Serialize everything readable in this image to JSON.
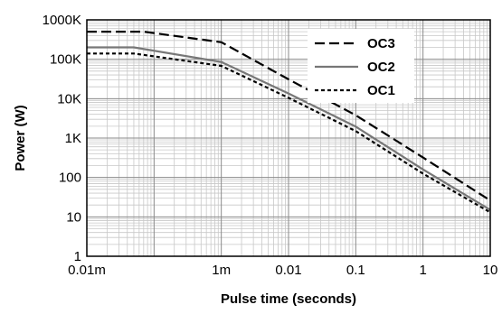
{
  "chart_data": {
    "type": "line",
    "title": "",
    "xlabel": "Pulse time (seconds)",
    "ylabel": "Power (W)",
    "x_scale": "log",
    "y_scale": "log",
    "xlim": [
      1e-05,
      10
    ],
    "ylim": [
      1,
      1000000
    ],
    "x_ticks": [
      {
        "value": 1e-05,
        "label": "0.01m"
      },
      {
        "value": 0.001,
        "label": "1m"
      },
      {
        "value": 0.01,
        "label": "0.01"
      },
      {
        "value": 0.1,
        "label": "0.1"
      },
      {
        "value": 1,
        "label": "1"
      },
      {
        "value": 10,
        "label": "10"
      }
    ],
    "y_ticks": [
      {
        "value": 1,
        "label": "1"
      },
      {
        "value": 10,
        "label": "10"
      },
      {
        "value": 100,
        "label": "100"
      },
      {
        "value": 1000,
        "label": "1K"
      },
      {
        "value": 10000,
        "label": "10K"
      },
      {
        "value": 100000,
        "label": "100K"
      },
      {
        "value": 1000000,
        "label": "1000K"
      }
    ],
    "grid": true,
    "legend_position": "top-right",
    "series": [
      {
        "name": "OC3",
        "style": "dashed",
        "color": "#000000",
        "x": [
          1e-05,
          7e-05,
          0.001,
          0.01,
          0.1,
          1,
          10
        ],
        "y": [
          500000,
          500000,
          270000,
          31000,
          3800,
          320,
          26
        ]
      },
      {
        "name": "OC2",
        "style": "solid",
        "color": "#777777",
        "x": [
          1e-05,
          5e-05,
          0.001,
          0.01,
          0.1,
          1,
          10
        ],
        "y": [
          200000,
          200000,
          85000,
          13500,
          1950,
          160,
          15
        ]
      },
      {
        "name": "OC1",
        "style": "dotted",
        "color": "#000000",
        "x": [
          1e-05,
          5e-05,
          0.001,
          0.01,
          0.1,
          1,
          10
        ],
        "y": [
          140000,
          140000,
          68000,
          10500,
          1500,
          125,
          13
        ]
      }
    ]
  }
}
